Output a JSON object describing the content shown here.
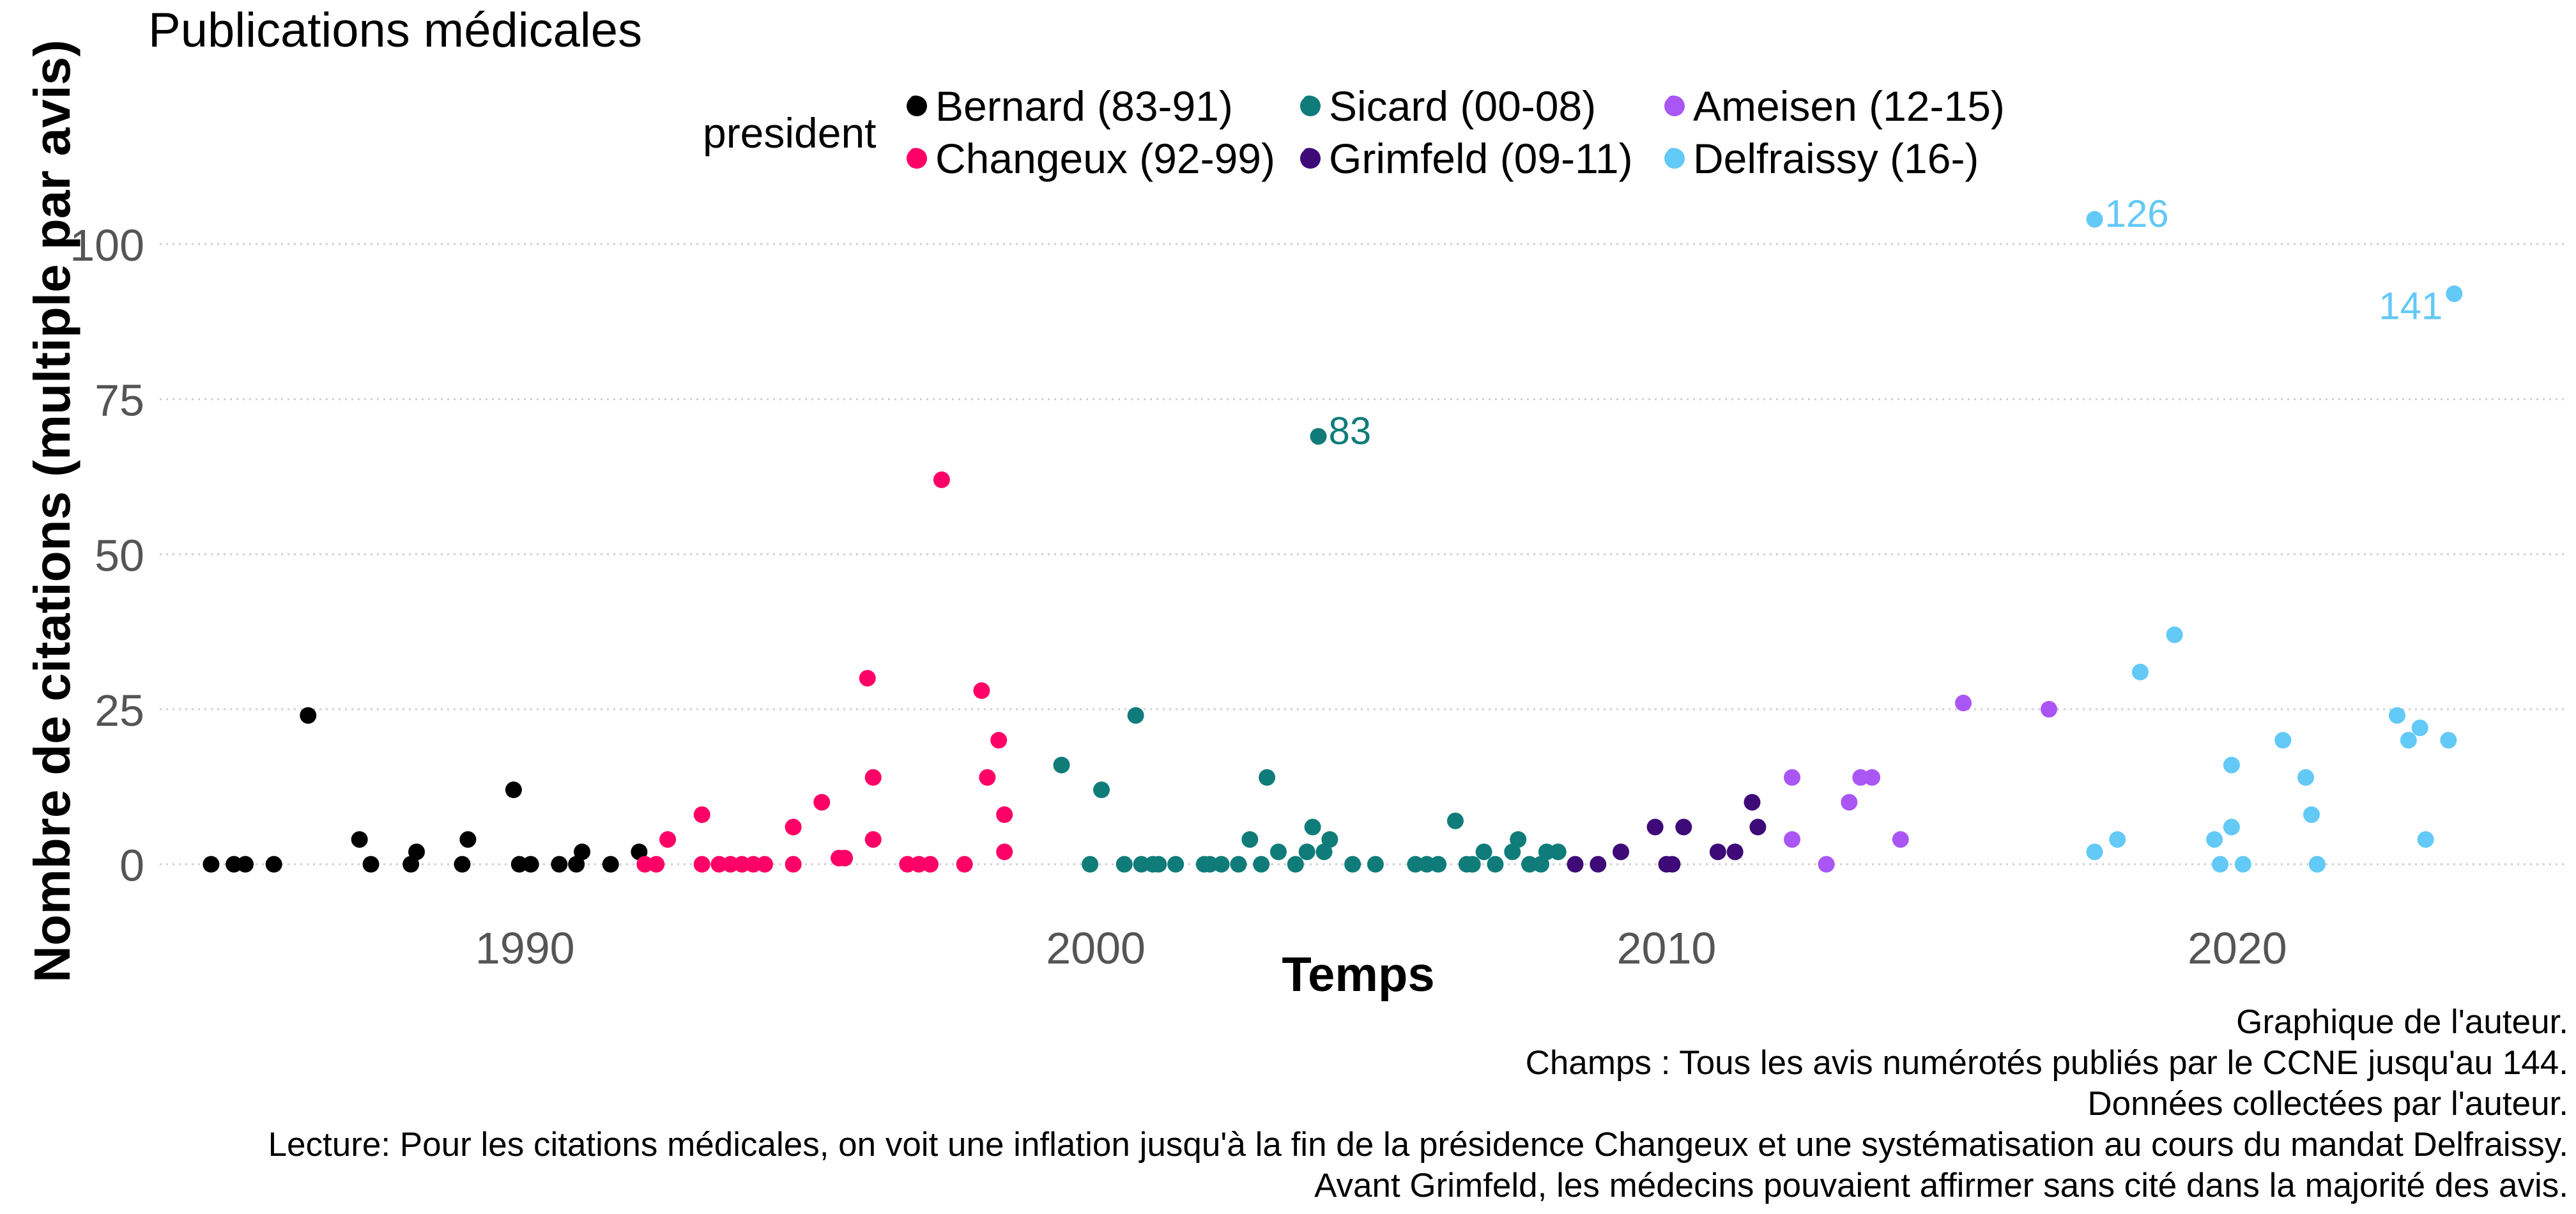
{
  "chart_data": {
    "type": "scatter",
    "title": "Publications médicales",
    "xlabel": "Temps",
    "ylabel": "Nombre de citations (multiple par avis)",
    "xlim": [
      1983.6,
      2025.8
    ],
    "ylim": [
      -9,
      110
    ],
    "x_ticks": [
      1990,
      2000,
      2010,
      2020
    ],
    "y_ticks": [
      0,
      25,
      50,
      75,
      100
    ],
    "grid": "horizontal dotted",
    "legend": {
      "title": "president",
      "position": "top",
      "entries": [
        {
          "label": "Bernard (83-91)",
          "color": "#000000",
          "key": "a"
        },
        {
          "label": "Changeux (92-99)",
          "color": "#ff0066",
          "key": "a"
        },
        {
          "label": "Sicard (00-08)",
          "color": "#0f7c7a",
          "key": "a"
        },
        {
          "label": "Grimfeld (09-11)",
          "color": "#3d0a78",
          "key": "a"
        },
        {
          "label": "Ameisen (12-15)",
          "color": "#a956f5",
          "key": "a"
        },
        {
          "label": "Delfraissy (16-)",
          "color": "#63c9f6",
          "key": "a"
        }
      ]
    },
    "series": [
      {
        "name": "Bernard (83-91)",
        "color": "#000000",
        "x": [
          1984.5,
          1984.9,
          1985.1,
          1985.6,
          1986.2,
          1987.1,
          1987.3,
          1988.0,
          1988.1,
          1988.9,
          1989.0,
          1989.8,
          1989.9,
          1990.1,
          1990.6,
          1990.9,
          1991.0,
          1991.5,
          1992.0
        ],
        "y": [
          0,
          0,
          0,
          0,
          24,
          4,
          0,
          0,
          2,
          0,
          4,
          12,
          0,
          0,
          0,
          0,
          2,
          0,
          2
        ]
      },
      {
        "name": "Changeux (92-99)",
        "color": "#ff0066",
        "x": [
          1992.1,
          1992.3,
          1992.5,
          1993.1,
          1993.1,
          1993.4,
          1993.6,
          1993.8,
          1994.0,
          1994.2,
          1994.7,
          1994.7,
          1995.2,
          1995.5,
          1995.6,
          1996.0,
          1996.1,
          1996.1,
          1996.7,
          1996.9,
          1997.1,
          1997.3,
          1997.7,
          1998.0,
          1998.1,
          1998.3,
          1998.4,
          1998.4
        ],
        "y": [
          0,
          0,
          4,
          8,
          0,
          0,
          0,
          0,
          0,
          0,
          0,
          6,
          10,
          1,
          1,
          30,
          14,
          4,
          0,
          0,
          0,
          62,
          0,
          28,
          14,
          20,
          8,
          2
        ]
      },
      {
        "name": "Sicard (00-08)",
        "color": "#0f7c7a",
        "x": [
          1999.4,
          1999.9,
          2000.1,
          2000.5,
          2000.7,
          2000.8,
          2001.0,
          2001.1,
          2001.4,
          2001.9,
          2002.0,
          2002.2,
          2002.5,
          2002.7,
          2002.9,
          2003.0,
          2003.2,
          2003.5,
          2003.7,
          2003.8,
          2003.9,
          2004.0,
          2004.1,
          2004.5,
          2004.9,
          2005.6,
          2005.8,
          2006.0,
          2006.3,
          2006.5,
          2006.6,
          2006.8,
          2007.0,
          2007.3,
          2007.4,
          2007.6,
          2007.8,
          2007.9,
          2008.1
        ],
        "y": [
          16,
          0,
          12,
          0,
          24,
          0,
          0,
          0,
          0,
          0,
          0,
          0,
          0,
          4,
          0,
          14,
          2,
          0,
          2,
          6,
          69,
          2,
          4,
          0,
          0,
          0,
          0,
          0,
          7,
          0,
          0,
          2,
          0,
          2,
          4,
          0,
          0,
          2,
          2
        ]
      },
      {
        "name": "Grimfeld (09-11)",
        "color": "#3d0a78",
        "x": [
          2008.4,
          2008.8,
          2009.2,
          2009.8,
          2010.0,
          2010.1,
          2010.3,
          2010.9,
          2011.2,
          2011.5,
          2011.6
        ],
        "y": [
          0,
          0,
          2,
          6,
          0,
          0,
          6,
          2,
          2,
          10,
          6
        ]
      },
      {
        "name": "Ameisen (12-15)",
        "color": "#a956f5",
        "x": [
          2012.2,
          2012.2,
          2012.8,
          2013.2,
          2013.4,
          2013.6,
          2014.1,
          2015.2,
          2016.7
        ],
        "y": [
          14,
          4,
          0,
          10,
          14,
          14,
          4,
          26,
          25
        ]
      },
      {
        "name": "Delfraissy (16-)",
        "color": "#63c9f6",
        "x": [
          2017.5,
          2017.5,
          2017.9,
          2018.3,
          2018.9,
          2019.6,
          2019.7,
          2019.9,
          2019.9,
          2020.1,
          2020.8,
          2021.2,
          2021.3,
          2021.4,
          2021.4,
          2022.8,
          2023.0,
          2023.2,
          2023.3,
          2023.7,
          2023.8
        ],
        "y": [
          2,
          104,
          4,
          31,
          37,
          4,
          0,
          16,
          6,
          0,
          20,
          14,
          8,
          0,
          0,
          24,
          20,
          22,
          4,
          20,
          92
        ]
      }
    ],
    "annotations": [
      {
        "text": "83",
        "x": 2003.9,
        "y": 69,
        "color": "#0f7c7a"
      },
      {
        "text": "126",
        "x": 2017.5,
        "y": 104,
        "color": "#63c9f6"
      },
      {
        "text": "141",
        "x": 2023.8,
        "y": 92,
        "color": "#63c9f6"
      }
    ]
  },
  "caption": [
    "Graphique de l'auteur.",
    "Champs : Tous les avis numérotés publiés par le CCNE jusqu'au 144.",
    "Données collectées par l'auteur.",
    "Lecture: Pour les citations médicales, on voit une inflation jusqu'à la fin de la présidence Changeux et une systématisation au cours du mandat Delfraissy.",
    "Avant Grimfeld, les médecins pouvaient affirmer sans cité dans la majorité des avis."
  ]
}
